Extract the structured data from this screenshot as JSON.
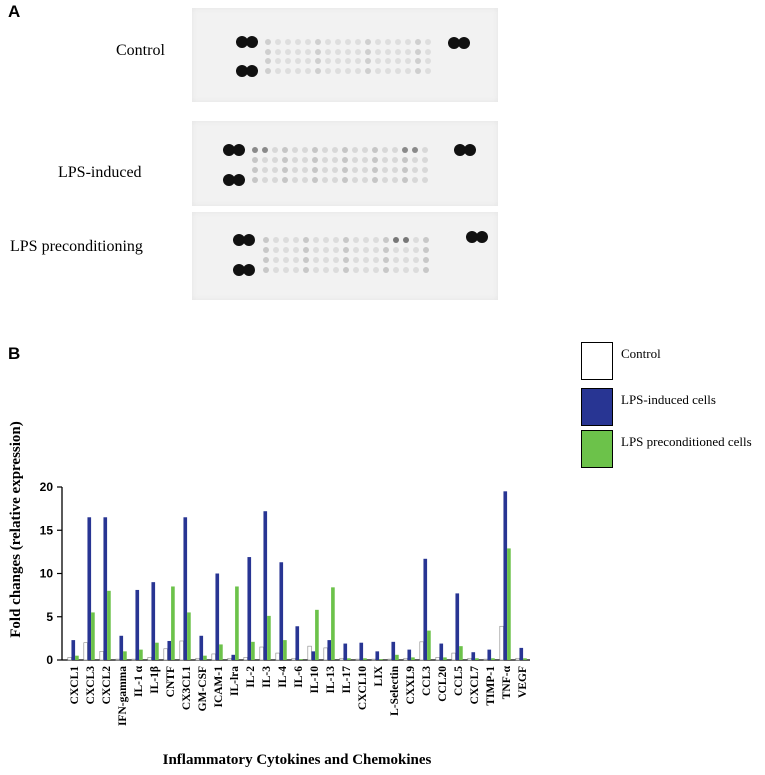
{
  "panels": {
    "a_label": "A",
    "b_label": "B"
  },
  "blots": [
    {
      "label": "Control"
    },
    {
      "label": "LPS-induced"
    },
    {
      "label": "LPS preconditioning"
    }
  ],
  "legend": [
    {
      "label": "Control",
      "color": "#ffffff"
    },
    {
      "label": "LPS-induced cells",
      "color": "#283593"
    },
    {
      "label": "LPS preconditioned cells",
      "color": "#6cc24a"
    }
  ],
  "chart_data": {
    "type": "bar",
    "title": "",
    "xlabel": "Inflammatory Cytokines and Chemokines",
    "ylabel": "Fold changes (relative expression)",
    "ylim": [
      0,
      20
    ],
    "yticks": [
      "0",
      "5",
      "10",
      "15",
      "20"
    ],
    "categories": [
      "CXCL1",
      "CXCL3",
      "CXCL2",
      "IFN-gamma",
      "IL-1 α",
      "IL-1β",
      "CNTF",
      "CX3CL1",
      "GM-CSF",
      "ICAM-1",
      "IL-lra",
      "IL-2",
      "IL-3",
      "IL-4",
      "IL-6",
      "IL-10",
      "IL-13",
      "IL-17",
      "CXCL10",
      "LIX",
      "L-Selectin",
      "CXXL9",
      "CCL3",
      "CCL20",
      "CCL5",
      "CXCL7",
      "TIMP-1",
      "TNF-α",
      "VEGF"
    ],
    "series": [
      {
        "name": "Control",
        "color": "#ffffff",
        "values": [
          0.3,
          2.0,
          1.0,
          0.1,
          0.1,
          0.3,
          1.3,
          2.2,
          0.2,
          0.7,
          0.2,
          0.3,
          1.5,
          0.8,
          0.2,
          1.6,
          1.4,
          0.2,
          0.1,
          0.1,
          0.1,
          0.2,
          2.1,
          0.3,
          0.8,
          0.2,
          0.1,
          3.9,
          0.2
        ]
      },
      {
        "name": "LPS-induced cells",
        "color": "#283593",
        "values": [
          2.3,
          16.5,
          16.5,
          2.8,
          8.1,
          9.0,
          2.2,
          16.5,
          2.8,
          10.0,
          0.6,
          11.9,
          17.2,
          11.3,
          3.9,
          1.0,
          2.3,
          1.9,
          2.0,
          1.0,
          2.1,
          1.2,
          11.7,
          1.9,
          7.7,
          0.9,
          1.2,
          19.5,
          1.4
        ]
      },
      {
        "name": "LPS preconditioned cells",
        "color": "#6cc24a",
        "values": [
          0.5,
          5.5,
          8.0,
          1.0,
          1.2,
          2.0,
          8.5,
          5.5,
          0.5,
          1.8,
          8.5,
          2.1,
          5.1,
          2.3,
          0.1,
          5.8,
          8.4,
          0.2,
          0.2,
          0.1,
          0.6,
          0.3,
          3.4,
          0.3,
          1.6,
          0.2,
          0.2,
          12.9,
          0.2
        ]
      }
    ]
  }
}
